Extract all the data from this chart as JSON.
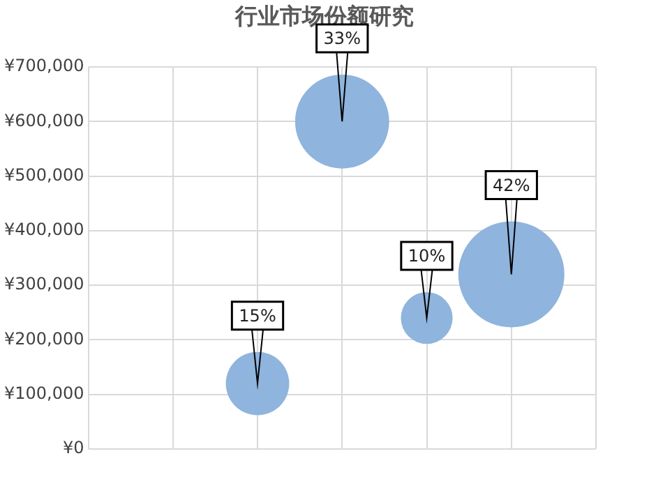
{
  "chart_data": {
    "type": "bubble",
    "title": "行业市场份额研究",
    "categories": [
      null,
      null,
      null,
      null,
      null,
      null,
      null
    ],
    "values": [
      null,
      null,
      120000,
      600000,
      240000,
      320000,
      null
    ],
    "sizes": [
      null,
      null,
      15,
      33,
      10,
      42,
      null
    ],
    "value_labels": [
      null,
      null,
      "15%",
      "33%",
      "10%",
      "42%",
      null
    ],
    "color": "#8fb4dd",
    "ylim": [
      0,
      700000
    ],
    "yticks": [
      {
        "value": 0,
        "label": "¥0"
      },
      {
        "value": 100000,
        "label": "¥100,000"
      },
      {
        "value": 200000,
        "label": "¥200,000"
      },
      {
        "value": 300000,
        "label": "¥300,000"
      },
      {
        "value": 400000,
        "label": "¥400,000"
      },
      {
        "value": 500000,
        "label": "¥500,000"
      },
      {
        "value": 600000,
        "label": "¥600,000"
      },
      {
        "value": 700000,
        "label": "¥700,000"
      }
    ],
    "grid": true,
    "legend": false
  }
}
